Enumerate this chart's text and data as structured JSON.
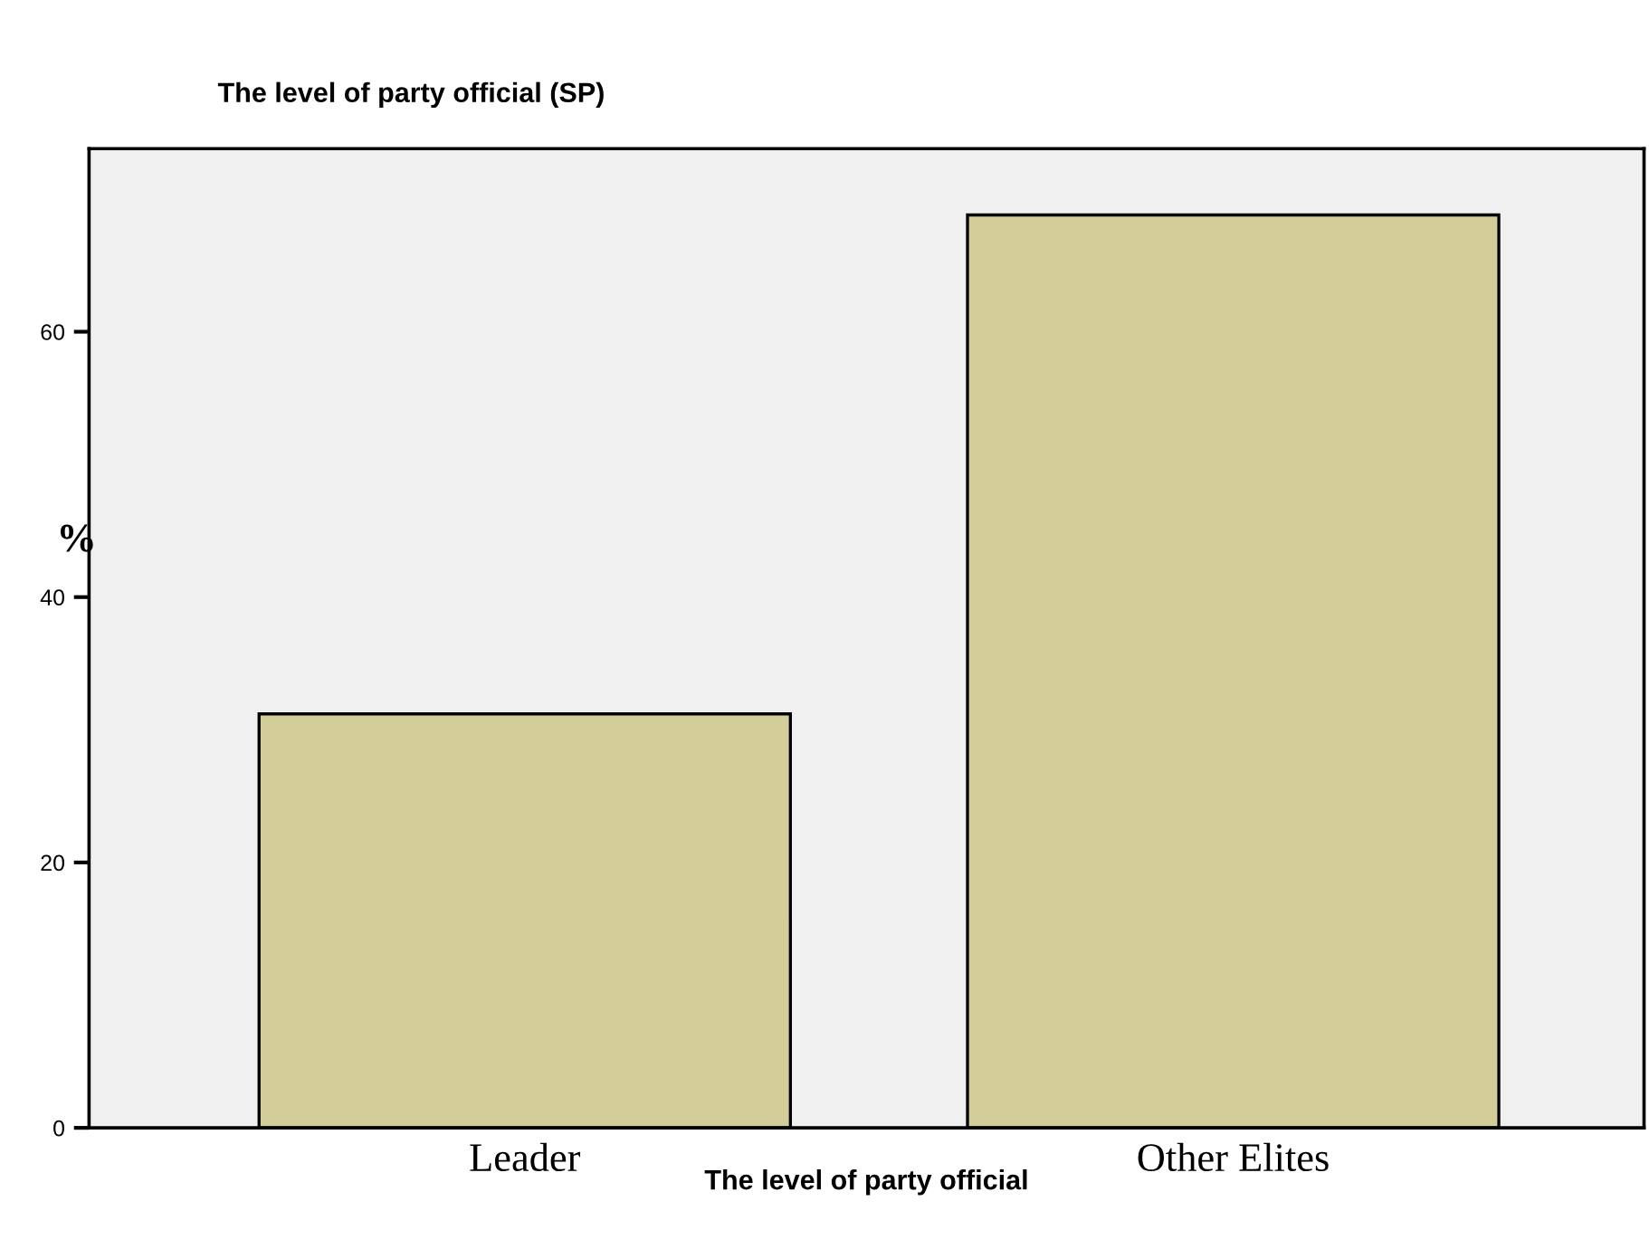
{
  "chart_data": {
    "type": "bar",
    "title": "The level of party official (SP)",
    "xlabel": "The level of party official",
    "ylabel": "%",
    "categories": [
      "Leader",
      "Other Elites"
    ],
    "values": [
      31.2,
      68.8
    ],
    "color": "#d3ce99",
    "ylim": [
      0,
      73.8
    ],
    "yticks": [
      0,
      20,
      40,
      60
    ],
    "grid": false,
    "legend": false
  }
}
